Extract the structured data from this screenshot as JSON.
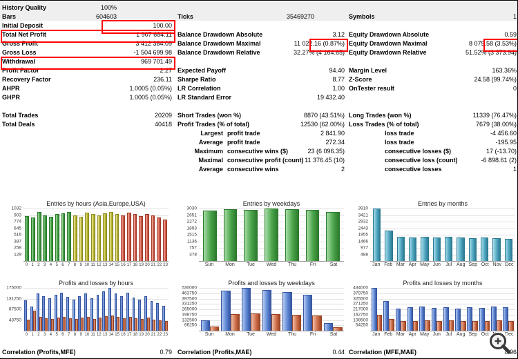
{
  "palette": {
    "green": {
      "light": "#a8dca8",
      "base": "#4aa44a",
      "dark": "#2c7a2c"
    },
    "yellow": {
      "light": "#e9e69c",
      "base": "#c3bf3c",
      "dark": "#8f8c20"
    },
    "red": {
      "light": "#f2b4aa",
      "base": "#dc6a58",
      "dark": "#a33a2a"
    },
    "teal": {
      "light": "#aadcea",
      "base": "#4fa6c0",
      "dark": "#2d7a92"
    },
    "blue": {
      "light": "#b5c9f0",
      "base": "#5c86d4",
      "dark": "#3756a0"
    },
    "loss": {
      "light": "#eebfa8",
      "base": "#cf6f4a",
      "dark": "#9a4424"
    }
  },
  "annotation_color": "#ff0000",
  "stats": {
    "left_rows": [
      {
        "label": "History Quality",
        "value": "100%",
        "vpad": 80
      },
      {
        "label": "Bars",
        "value": "604603",
        "vpad": 80
      },
      {
        "label": "Initial Deposit",
        "value": "100.00"
      },
      {
        "label": "Total Net Profit",
        "value": "1 907 684.11"
      },
      {
        "label": "Gross Profit",
        "value": "3 412 384.09"
      },
      {
        "label": "Gross Loss",
        "value": "-1 504 699.98"
      },
      {
        "label": "Withdrawal",
        "value": "969 701.49"
      },
      {
        "label": "Profit Factor",
        "value": "2.27"
      },
      {
        "label": "Recovery Factor",
        "value": "236.11"
      },
      {
        "label": "AHPR",
        "value": "1.0005 (0.05%)"
      },
      {
        "label": "GHPR",
        "value": "1.0005 (0.05%)"
      },
      null,
      {
        "label": "Total Trades",
        "value": "20209"
      },
      {
        "label": "Total Deals",
        "value": "40418"
      },
      null,
      null,
      null,
      null,
      null
    ],
    "middle_rows": [
      null,
      {
        "label": "Ticks",
        "value": "35469270",
        "vpad": 44
      },
      null,
      {
        "label": "Balance Drawdown Absolute",
        "value": "3.12"
      },
      {
        "label": "Balance Drawdown Maximal",
        "value": "11 022.16 (0.87%)"
      },
      {
        "label": "Balance Drawdown Relative",
        "value": "32.27% (4 164.65)"
      },
      null,
      {
        "label": "Expected Payoff",
        "value": "94.40"
      },
      {
        "label": "Sharpe Ratio",
        "value": "8.77"
      },
      {
        "label": "LR Correlation",
        "value": "1.00"
      },
      {
        "label": "LR Standard Error",
        "value": "19 432.40"
      },
      null,
      {
        "label": "Short Trades (won %)",
        "value": "8870 (43.51%)"
      },
      {
        "label": "Profit Trades (% of total)",
        "value": "12530 (62.00%)"
      },
      {
        "prefix": "Largest",
        "label": "profit trade",
        "value": "2 841.90"
      },
      {
        "prefix": "Average",
        "label": "profit trade",
        "value": "272.34"
      },
      {
        "prefix": "Maximum",
        "label": "consecutive wins ($)",
        "value": "23 (6 096.35)"
      },
      {
        "prefix": "Maximal",
        "label": "consecutive profit (count)",
        "value": "11 376.45 (10)"
      },
      {
        "prefix": "Average",
        "label": "consecutive wins",
        "value": "2"
      }
    ],
    "right_rows": [
      null,
      {
        "label": "Symbols",
        "value": "1"
      },
      null,
      {
        "label": "Equity Drawdown Absolute",
        "value": "0.59"
      },
      {
        "label": "Equity Drawdown Maximal",
        "value": "8 079.58 (3.53%)"
      },
      {
        "label": "Equity Drawdown Relative",
        "value": "51.52% (3 373.94)"
      },
      null,
      {
        "label": "Margin Level",
        "value": "163.36%"
      },
      {
        "label": "Z-Score",
        "value": "24.58 (99.74%)"
      },
      {
        "label": "OnTester result",
        "value": "0"
      },
      null,
      null,
      {
        "label": "Long Trades (won %)",
        "value": "11339 (76.47%)"
      },
      {
        "label": "Loss Trades (% of total)",
        "value": "7679 (38.00%)"
      },
      {
        "indent": true,
        "label": "loss trade",
        "value": "-4 456.60"
      },
      {
        "indent": true,
        "label": "loss trade",
        "value": "-195.95"
      },
      {
        "indent": true,
        "label": "consecutive losses ($)",
        "value": "17 (-13.70)"
      },
      {
        "indent": true,
        "label": "consecutive loss (count)",
        "value": "-6 898.61 (2)"
      },
      {
        "indent": true,
        "label": "consecutive losses",
        "value": "1"
      }
    ]
  },
  "correlations": {
    "left": {
      "label": "Correlation (Profits,MFE)",
      "value": "0.79"
    },
    "middle": {
      "label": "Correlation (Profits,MAE)",
      "value": "0.44"
    },
    "right": {
      "label": "Correlation (MFE,MAE)",
      "value": "0.96"
    }
  },
  "chart_data": [
    {
      "type": "bar",
      "title": "Entries by hours (Asia,Europe,USA)",
      "categories": [
        "0",
        "1",
        "2",
        "3",
        "4",
        "5",
        "6",
        "7",
        "8",
        "9",
        "10",
        "11",
        "12",
        "13",
        "14",
        "15",
        "16",
        "17",
        "18",
        "19",
        "20",
        "21",
        "22",
        "23"
      ],
      "values": [
        880,
        850,
        960,
        900,
        870,
        920,
        940,
        960,
        900,
        870,
        950,
        920,
        890,
        940,
        960,
        930,
        900,
        950,
        920,
        880,
        930,
        900,
        860,
        820
      ],
      "bar_colors": [
        "green",
        "green",
        "green",
        "green",
        "green",
        "green",
        "green",
        "green",
        "yellow",
        "yellow",
        "yellow",
        "yellow",
        "yellow",
        "yellow",
        "yellow",
        "yellow",
        "red",
        "red",
        "red",
        "red",
        "red",
        "red",
        "red",
        "red"
      ],
      "yticks": [
        1032,
        903,
        774,
        645,
        516,
        387,
        258,
        129
      ],
      "ylim": [
        0,
        1032
      ]
    },
    {
      "type": "bar",
      "title": "Entries by weekdays",
      "categories": [
        "Sun",
        "Mon",
        "Tue",
        "Wed",
        "Thu",
        "Fri",
        "Sat"
      ],
      "values": [
        2920,
        3010,
        2960,
        3030,
        2980,
        2950,
        2840
      ],
      "color": "green",
      "yticks": [
        3030,
        2651,
        2272,
        1893,
        1515,
        1136,
        757,
        378
      ],
      "ylim": [
        0,
        3030
      ]
    },
    {
      "type": "bar",
      "title": "Entries by months",
      "categories": [
        "Jan",
        "Feb",
        "Mar",
        "Apr",
        "May",
        "Jun",
        "Jul",
        "Aug",
        "Sep",
        "Oct",
        "Nov",
        "Dec"
      ],
      "values": [
        3910,
        2250,
        1820,
        1750,
        1800,
        1760,
        1790,
        1740,
        1700,
        1730,
        1680,
        1630
      ],
      "color": "teal",
      "yticks": [
        3910,
        3421,
        2932,
        2443,
        1955,
        1466,
        977,
        488
      ],
      "ylim": [
        0,
        3910
      ]
    },
    {
      "type": "bar",
      "title": "Profits and losses by hours",
      "categories": [
        "0",
        "1",
        "2",
        "3",
        "4",
        "5",
        "6",
        "7",
        "8",
        "9",
        "10",
        "11",
        "12",
        "13",
        "14",
        "15",
        "16",
        "17",
        "18",
        "19",
        "20",
        "21",
        "22",
        "23"
      ],
      "series": [
        {
          "name": "profits",
          "color": "blue",
          "values": [
            125000,
            98000,
            152000,
            142000,
            132000,
            146000,
            156000,
            138000,
            126000,
            142000,
            152000,
            132000,
            146000,
            160000,
            175000,
            152000,
            142000,
            156000,
            136000,
            126000,
            142000,
            122000,
            112000,
            102000
          ]
        },
        {
          "name": "losses",
          "color": "loss",
          "values": [
            46000,
            82000,
            56000,
            51000,
            49000,
            53000,
            57000,
            51000,
            48000,
            53000,
            56000,
            49000,
            53000,
            59000,
            63000,
            56000,
            51000,
            57000,
            51000,
            47000,
            53000,
            45000,
            41000,
            39000
          ]
        }
      ],
      "yticks": [
        175000,
        131250,
        87500,
        43750
      ],
      "ylim": [
        0,
        175000
      ]
    },
    {
      "type": "bar",
      "title": "Profits and losses by weekdays",
      "categories": [
        "Sun",
        "Mon",
        "Tue",
        "Wed",
        "Thu",
        "Fri",
        "Sat"
      ],
      "series": [
        {
          "name": "profits",
          "color": "blue",
          "values": [
            130000,
            492000,
            530000,
            502000,
            476000,
            446000,
            98000
          ]
        },
        {
          "name": "losses",
          "color": "loss",
          "values": [
            52000,
            202000,
            216000,
            206000,
            198000,
            188000,
            42000
          ]
        }
      ],
      "yticks": [
        530000,
        463750,
        397500,
        331250,
        265000,
        198750,
        132500,
        66250
      ],
      "ylim": [
        0,
        530000
      ]
    },
    {
      "type": "bar",
      "title": "Profits and losses by months",
      "categories": [
        "Jan",
        "Feb",
        "Mar",
        "Apr",
        "May",
        "Jun",
        "Jul",
        "Aug",
        "Sep",
        "Oct",
        "Nov",
        "Dec"
      ],
      "series": [
        {
          "name": "profits",
          "color": "blue",
          "values": [
            434000,
            302000,
            226000,
            236000,
            246000,
            231000,
            241000,
            226000,
            236000,
            231000,
            246000,
            236000
          ]
        },
        {
          "name": "losses",
          "color": "loss",
          "values": [
            162000,
            121000,
            96000,
            101000,
            106000,
            99000,
            103000,
            97000,
            101000,
            99000,
            106000,
            101000
          ]
        }
      ],
      "yticks": [
        434000,
        379750,
        325500,
        271250,
        217000,
        162750,
        108500,
        54250
      ],
      "ylim": [
        0,
        434000
      ]
    }
  ],
  "overlay": {
    "magnifier_icon": "zoom-in"
  }
}
